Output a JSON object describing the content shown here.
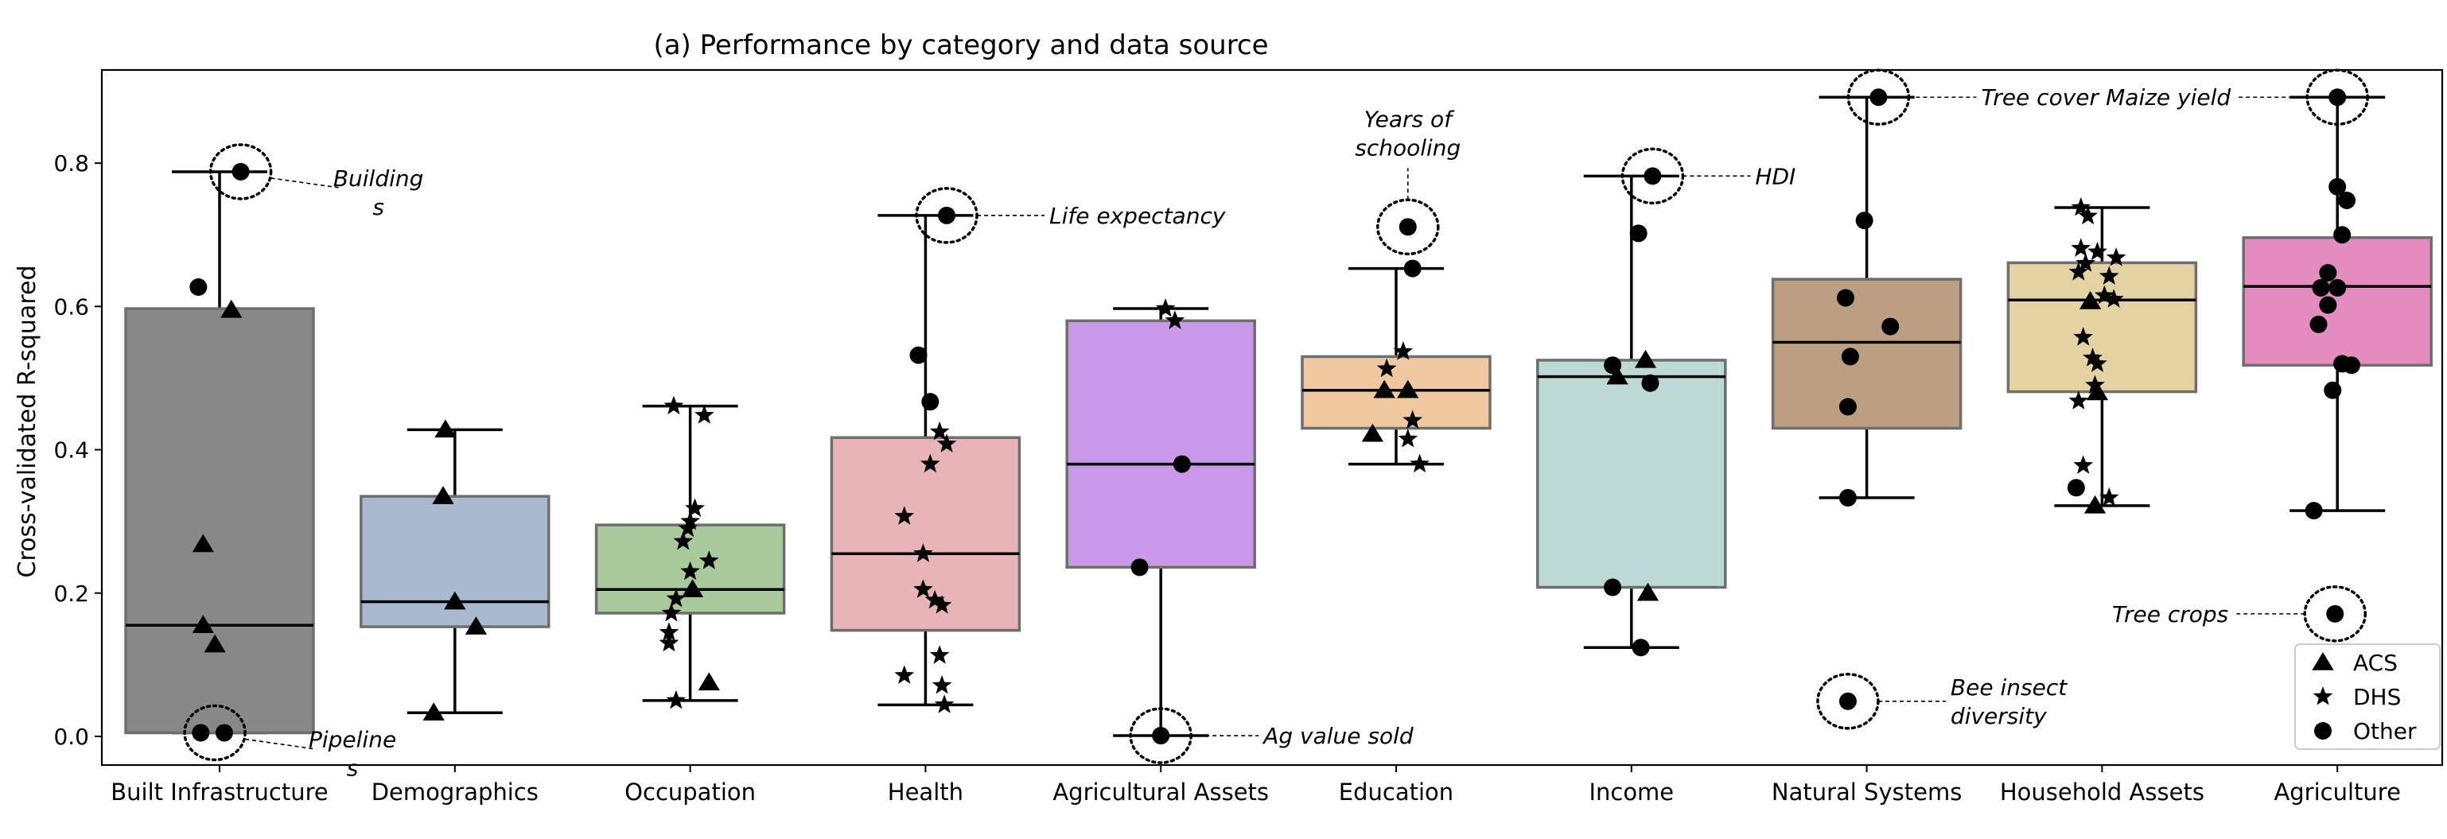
{
  "chart_data": {
    "type": "box",
    "title": "(a) Performance by category and data source",
    "xlabel": "",
    "ylabel": "Cross-validated R-squared",
    "ylim": [
      -0.04,
      0.93
    ],
    "yticks": [
      0.0,
      0.2,
      0.4,
      0.6,
      0.8
    ],
    "ytick_labels": [
      "0.0",
      "0.2",
      "0.4",
      "0.6",
      "0.8"
    ],
    "grid": false,
    "legend_position": "bottom-right",
    "legend": [
      {
        "label": "ACS",
        "marker": "triangle"
      },
      {
        "label": "DHS",
        "marker": "star"
      },
      {
        "label": "Other",
        "marker": "circle"
      }
    ],
    "categories": [
      {
        "name": "Built Infrastructure",
        "color": "#888888",
        "box": {
          "whislo": 0.005,
          "q1": 0.005,
          "med": 0.155,
          "q3": 0.597,
          "whishi": 0.788
        },
        "points": [
          {
            "jitter": 0.09,
            "y": 0.788,
            "m": "o"
          },
          {
            "jitter": -0.09,
            "y": 0.627,
            "m": "o"
          },
          {
            "jitter": 0.05,
            "y": 0.595,
            "m": "^"
          },
          {
            "jitter": -0.07,
            "y": 0.268,
            "m": "^"
          },
          {
            "jitter": -0.07,
            "y": 0.155,
            "m": "^"
          },
          {
            "jitter": -0.02,
            "y": 0.128,
            "m": "^"
          },
          {
            "jitter": -0.08,
            "y": 0.005,
            "m": "o"
          },
          {
            "jitter": 0.02,
            "y": 0.005,
            "m": "o"
          }
        ]
      },
      {
        "name": "Demographics",
        "color": "#a9b9cf",
        "box": {
          "whislo": 0.033,
          "q1": 0.153,
          "med": 0.188,
          "q3": 0.335,
          "whishi": 0.428
        },
        "points": [
          {
            "jitter": -0.04,
            "y": 0.428,
            "m": "^"
          },
          {
            "jitter": -0.05,
            "y": 0.335,
            "m": "^"
          },
          {
            "jitter": 0.0,
            "y": 0.188,
            "m": "^"
          },
          {
            "jitter": 0.09,
            "y": 0.153,
            "m": "^"
          },
          {
            "jitter": -0.09,
            "y": 0.033,
            "m": "^"
          }
        ]
      },
      {
        "name": "Occupation",
        "color": "#a8ca9c",
        "box": {
          "whislo": 0.05,
          "q1": 0.172,
          "med": 0.205,
          "q3": 0.295,
          "whishi": 0.461
        },
        "points": [
          {
            "jitter": -0.07,
            "y": 0.461,
            "m": "*"
          },
          {
            "jitter": 0.06,
            "y": 0.448,
            "m": "*"
          },
          {
            "jitter": 0.02,
            "y": 0.318,
            "m": "*"
          },
          {
            "jitter": 0.0,
            "y": 0.3,
            "m": "*"
          },
          {
            "jitter": -0.01,
            "y": 0.29,
            "m": "*"
          },
          {
            "jitter": -0.03,
            "y": 0.272,
            "m": "*"
          },
          {
            "jitter": 0.08,
            "y": 0.245,
            "m": "*"
          },
          {
            "jitter": 0.0,
            "y": 0.23,
            "m": "*"
          },
          {
            "jitter": 0.01,
            "y": 0.205,
            "m": "^"
          },
          {
            "jitter": -0.06,
            "y": 0.192,
            "m": "*"
          },
          {
            "jitter": -0.08,
            "y": 0.172,
            "m": "*"
          },
          {
            "jitter": -0.09,
            "y": 0.145,
            "m": "*"
          },
          {
            "jitter": -0.09,
            "y": 0.13,
            "m": "*"
          },
          {
            "jitter": 0.08,
            "y": 0.075,
            "m": "^"
          },
          {
            "jitter": -0.06,
            "y": 0.05,
            "m": "*"
          }
        ]
      },
      {
        "name": "Health",
        "color": "#e8b4b8",
        "box": {
          "whislo": 0.044,
          "q1": 0.148,
          "med": 0.255,
          "q3": 0.417,
          "whishi": 0.727
        },
        "points": [
          {
            "jitter": 0.09,
            "y": 0.727,
            "m": "o"
          },
          {
            "jitter": -0.03,
            "y": 0.532,
            "m": "o"
          },
          {
            "jitter": 0.02,
            "y": 0.467,
            "m": "o"
          },
          {
            "jitter": 0.06,
            "y": 0.425,
            "m": "*"
          },
          {
            "jitter": 0.09,
            "y": 0.408,
            "m": "*"
          },
          {
            "jitter": 0.02,
            "y": 0.38,
            "m": "*"
          },
          {
            "jitter": -0.09,
            "y": 0.307,
            "m": "*"
          },
          {
            "jitter": -0.01,
            "y": 0.255,
            "m": "*"
          },
          {
            "jitter": -0.01,
            "y": 0.205,
            "m": "*"
          },
          {
            "jitter": 0.04,
            "y": 0.19,
            "m": "*"
          },
          {
            "jitter": 0.07,
            "y": 0.183,
            "m": "*"
          },
          {
            "jitter": 0.06,
            "y": 0.113,
            "m": "*"
          },
          {
            "jitter": -0.09,
            "y": 0.085,
            "m": "*"
          },
          {
            "jitter": 0.07,
            "y": 0.071,
            "m": "*"
          },
          {
            "jitter": 0.08,
            "y": 0.044,
            "m": "*"
          }
        ]
      },
      {
        "name": "Agricultural Assets",
        "color": "#c998e8",
        "box": {
          "whislo": 0.001,
          "q1": 0.236,
          "med": 0.38,
          "q3": 0.58,
          "whishi": 0.597
        },
        "points": [
          {
            "jitter": 0.02,
            "y": 0.597,
            "m": "*"
          },
          {
            "jitter": 0.06,
            "y": 0.58,
            "m": "*"
          },
          {
            "jitter": 0.09,
            "y": 0.38,
            "m": "o"
          },
          {
            "jitter": -0.09,
            "y": 0.236,
            "m": "o"
          },
          {
            "jitter": 0.0,
            "y": 0.001,
            "m": "o"
          }
        ]
      },
      {
        "name": "Education",
        "color": "#f0c8a0",
        "box": {
          "whislo": 0.38,
          "q1": 0.43,
          "med": 0.483,
          "q3": 0.53,
          "whishi": 0.653
        },
        "points": [
          {
            "jitter": 0.05,
            "y": 0.711,
            "m": "o"
          },
          {
            "jitter": 0.07,
            "y": 0.653,
            "m": "o"
          },
          {
            "jitter": 0.03,
            "y": 0.537,
            "m": "*"
          },
          {
            "jitter": -0.04,
            "y": 0.513,
            "m": "*"
          },
          {
            "jitter": -0.05,
            "y": 0.483,
            "m": "^"
          },
          {
            "jitter": 0.05,
            "y": 0.483,
            "m": "^"
          },
          {
            "jitter": 0.07,
            "y": 0.441,
            "m": "*"
          },
          {
            "jitter": -0.1,
            "y": 0.422,
            "m": "^"
          },
          {
            "jitter": 0.05,
            "y": 0.415,
            "m": "*"
          },
          {
            "jitter": 0.1,
            "y": 0.38,
            "m": "*"
          }
        ]
      },
      {
        "name": "Income",
        "color": "#bcd9d6",
        "box": {
          "whislo": 0.124,
          "q1": 0.208,
          "med": 0.502,
          "q3": 0.525,
          "whishi": 0.782
        },
        "points": [
          {
            "jitter": 0.09,
            "y": 0.782,
            "m": "o"
          },
          {
            "jitter": 0.03,
            "y": 0.702,
            "m": "o"
          },
          {
            "jitter": 0.06,
            "y": 0.525,
            "m": "^"
          },
          {
            "jitter": -0.08,
            "y": 0.518,
            "m": "o"
          },
          {
            "jitter": -0.06,
            "y": 0.502,
            "m": "^"
          },
          {
            "jitter": 0.08,
            "y": 0.493,
            "m": "o"
          },
          {
            "jitter": 0.07,
            "y": 0.2,
            "m": "^"
          },
          {
            "jitter": -0.08,
            "y": 0.208,
            "m": "o"
          },
          {
            "jitter": 0.04,
            "y": 0.124,
            "m": "o"
          }
        ]
      },
      {
        "name": "Natural Systems",
        "color": "#bc9e82",
        "box": {
          "whislo": 0.333,
          "q1": 0.43,
          "med": 0.55,
          "q3": 0.638,
          "whishi": 0.892
        },
        "points": [
          {
            "jitter": 0.05,
            "y": 0.892,
            "m": "o"
          },
          {
            "jitter": -0.01,
            "y": 0.72,
            "m": "o"
          },
          {
            "jitter": -0.09,
            "y": 0.612,
            "m": "o"
          },
          {
            "jitter": 0.1,
            "y": 0.572,
            "m": "o"
          },
          {
            "jitter": -0.07,
            "y": 0.53,
            "m": "o"
          },
          {
            "jitter": -0.08,
            "y": 0.46,
            "m": "o"
          },
          {
            "jitter": -0.08,
            "y": 0.333,
            "m": "o"
          },
          {
            "jitter": -0.08,
            "y": 0.049,
            "m": "o"
          }
        ]
      },
      {
        "name": "Household Assets",
        "color": "#e3d3a3",
        "box": {
          "whislo": 0.322,
          "q1": 0.481,
          "med": 0.609,
          "q3": 0.661,
          "whishi": 0.738
        },
        "points": [
          {
            "jitter": -0.09,
            "y": 0.738,
            "m": "*"
          },
          {
            "jitter": -0.06,
            "y": 0.726,
            "m": "*"
          },
          {
            "jitter": -0.09,
            "y": 0.681,
            "m": "*"
          },
          {
            "jitter": -0.02,
            "y": 0.676,
            "m": "*"
          },
          {
            "jitter": 0.06,
            "y": 0.668,
            "m": "*"
          },
          {
            "jitter": -0.07,
            "y": 0.66,
            "m": "*"
          },
          {
            "jitter": -0.1,
            "y": 0.648,
            "m": "*"
          },
          {
            "jitter": 0.03,
            "y": 0.642,
            "m": "*"
          },
          {
            "jitter": 0.01,
            "y": 0.615,
            "m": "*"
          },
          {
            "jitter": 0.05,
            "y": 0.61,
            "m": "*"
          },
          {
            "jitter": -0.05,
            "y": 0.607,
            "m": "^"
          },
          {
            "jitter": -0.08,
            "y": 0.557,
            "m": "*"
          },
          {
            "jitter": -0.04,
            "y": 0.528,
            "m": "*"
          },
          {
            "jitter": -0.02,
            "y": 0.52,
            "m": "*"
          },
          {
            "jitter": -0.03,
            "y": 0.49,
            "m": "*"
          },
          {
            "jitter": -0.02,
            "y": 0.48,
            "m": "^"
          },
          {
            "jitter": -0.1,
            "y": 0.468,
            "m": "*"
          },
          {
            "jitter": -0.08,
            "y": 0.378,
            "m": "*"
          },
          {
            "jitter": -0.11,
            "y": 0.347,
            "m": "o"
          },
          {
            "jitter": 0.03,
            "y": 0.333,
            "m": "*"
          },
          {
            "jitter": -0.03,
            "y": 0.322,
            "m": "^"
          }
        ]
      },
      {
        "name": "Agriculture",
        "color": "#e48cbf",
        "box": {
          "whislo": 0.315,
          "q1": 0.518,
          "med": 0.628,
          "q3": 0.696,
          "whishi": 0.892
        },
        "points": [
          {
            "jitter": 0.0,
            "y": 0.892,
            "m": "o"
          },
          {
            "jitter": 0.0,
            "y": 0.767,
            "m": "o"
          },
          {
            "jitter": 0.04,
            "y": 0.748,
            "m": "o"
          },
          {
            "jitter": 0.02,
            "y": 0.7,
            "m": "o"
          },
          {
            "jitter": -0.04,
            "y": 0.647,
            "m": "o"
          },
          {
            "jitter": -0.07,
            "y": 0.626,
            "m": "o"
          },
          {
            "jitter": 0.0,
            "y": 0.626,
            "m": "o"
          },
          {
            "jitter": -0.04,
            "y": 0.602,
            "m": "o"
          },
          {
            "jitter": -0.08,
            "y": 0.575,
            "m": "o"
          },
          {
            "jitter": 0.02,
            "y": 0.52,
            "m": "o"
          },
          {
            "jitter": 0.06,
            "y": 0.518,
            "m": "o"
          },
          {
            "jitter": -0.02,
            "y": 0.483,
            "m": "o"
          },
          {
            "jitter": -0.1,
            "y": 0.315,
            "m": "o"
          },
          {
            "jitter": -0.01,
            "y": 0.171,
            "m": "o"
          }
        ]
      }
    ],
    "annotations": [
      {
        "text": "Building\ns",
        "cat": 0,
        "jitter": 0.09,
        "y": 0.788,
        "side": "right-below"
      },
      {
        "text": "Pipeline\ns",
        "cat": 0,
        "jitter": -0.02,
        "y": 0.005,
        "side": "right-below"
      },
      {
        "text": "Life expectancy",
        "cat": 3,
        "jitter": 0.09,
        "y": 0.727,
        "side": "right"
      },
      {
        "text": "Ag value sold",
        "cat": 4,
        "jitter": 0.0,
        "y": 0.001,
        "side": "right"
      },
      {
        "text": "Years of\nschooling",
        "cat": 5,
        "jitter": 0.05,
        "y": 0.711,
        "side": "above"
      },
      {
        "text": "HDI",
        "cat": 6,
        "jitter": 0.09,
        "y": 0.782,
        "side": "right"
      },
      {
        "text": "Tree cover",
        "cat": 7,
        "jitter": 0.05,
        "y": 0.892,
        "side": "right"
      },
      {
        "text": "Bee insect\ndiversity",
        "cat": 7,
        "jitter": -0.08,
        "y": 0.049,
        "side": "right"
      },
      {
        "text": "Maize yield",
        "cat": 9,
        "jitter": 0.0,
        "y": 0.892,
        "side": "left"
      },
      {
        "text": "Tree crops",
        "cat": 9,
        "jitter": -0.01,
        "y": 0.171,
        "side": "left"
      }
    ]
  }
}
